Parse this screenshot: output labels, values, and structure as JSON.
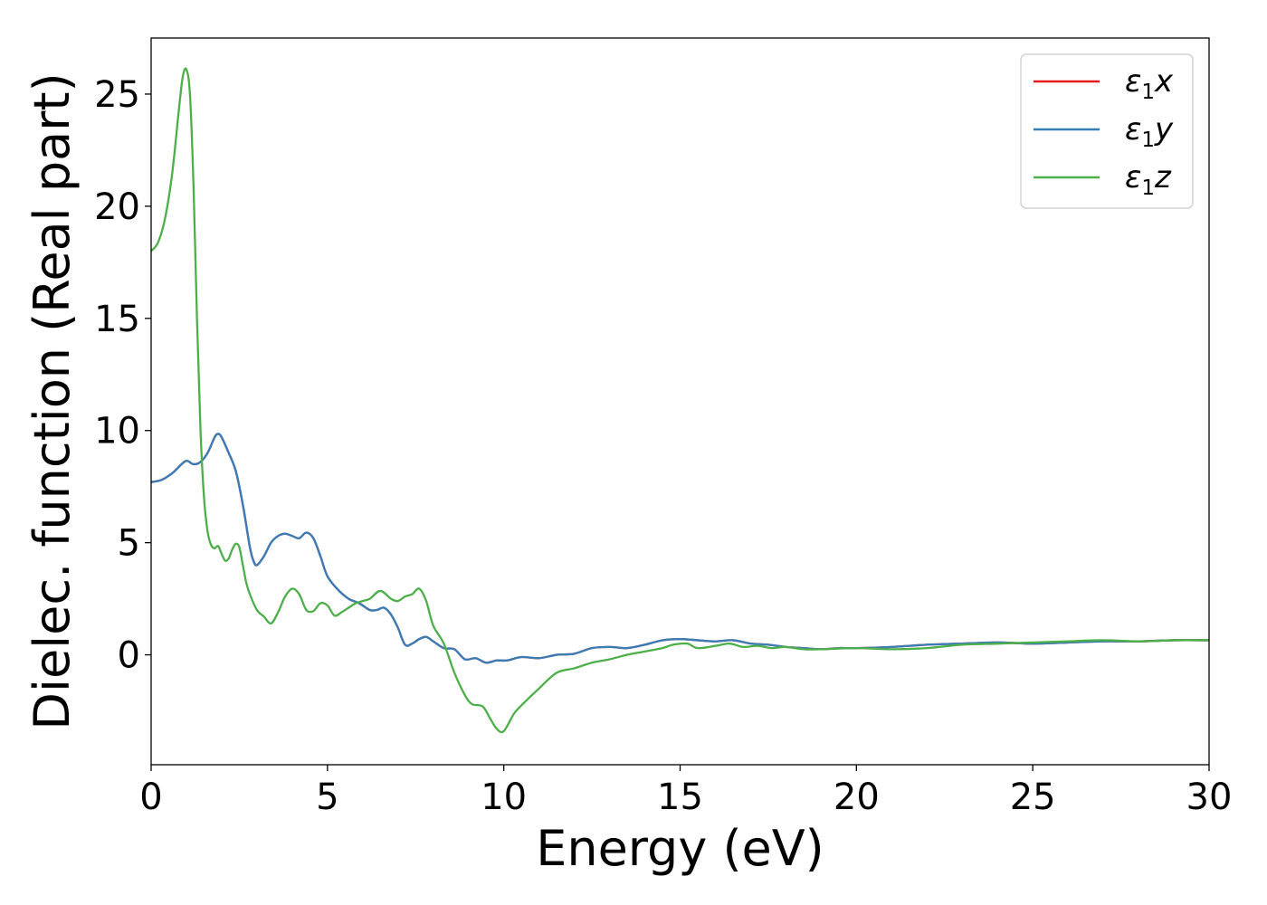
{
  "chart_data": {
    "type": "line",
    "title": "",
    "xlabel": "Energy (eV)",
    "ylabel": "Dielec. function (Real part)",
    "xlim": [
      0,
      30
    ],
    "ylim": [
      -4.9,
      27.5
    ],
    "xticks": [
      0,
      5,
      10,
      15,
      20,
      25,
      30
    ],
    "yticks": [
      0,
      5,
      10,
      15,
      20,
      25
    ],
    "grid": false,
    "legend_position": "top-right",
    "series": [
      {
        "name": "ε₁x",
        "legend": {
          "base": "ε",
          "sub": "1",
          "axis": "x"
        },
        "color": "#e41a1c",
        "x": [
          0,
          0.3,
          0.6,
          0.8,
          1.0,
          1.2,
          1.4,
          1.6,
          1.8,
          1.9,
          2.0,
          2.2,
          2.4,
          2.6,
          2.8,
          2.9,
          3.0,
          3.2,
          3.4,
          3.6,
          3.8,
          4.0,
          4.2,
          4.4,
          4.6,
          4.8,
          5.0,
          5.3,
          5.6,
          5.9,
          6.2,
          6.4,
          6.6,
          6.8,
          7.0,
          7.2,
          7.4,
          7.6,
          7.8,
          8.0,
          8.3,
          8.6,
          8.9,
          9.2,
          9.5,
          9.8,
          10.1,
          10.5,
          11.0,
          11.5,
          12.0,
          12.5,
          13.0,
          13.5,
          14.0,
          14.5,
          15.0,
          15.5,
          16.0,
          16.5,
          17.0,
          17.5,
          18.0,
          18.5,
          19.0,
          19.5,
          20.0,
          21.0,
          22.0,
          23.0,
          24.0,
          25.0,
          26.0,
          27.0,
          28.0,
          29.0,
          30.0
        ],
        "y": [
          7.7,
          7.8,
          8.1,
          8.4,
          8.65,
          8.5,
          8.6,
          9.0,
          9.7,
          9.85,
          9.7,
          9.0,
          8.2,
          6.7,
          4.8,
          4.2,
          4.0,
          4.4,
          5.0,
          5.3,
          5.4,
          5.3,
          5.2,
          5.45,
          5.2,
          4.4,
          3.5,
          2.9,
          2.5,
          2.3,
          2.0,
          2.0,
          2.1,
          1.8,
          1.2,
          0.45,
          0.5,
          0.7,
          0.8,
          0.6,
          0.3,
          0.25,
          -0.2,
          -0.15,
          -0.35,
          -0.25,
          -0.25,
          -0.1,
          -0.15,
          0.0,
          0.05,
          0.3,
          0.35,
          0.3,
          0.45,
          0.65,
          0.7,
          0.65,
          0.6,
          0.65,
          0.5,
          0.45,
          0.35,
          0.3,
          0.25,
          0.3,
          0.3,
          0.35,
          0.45,
          0.5,
          0.55,
          0.5,
          0.55,
          0.6,
          0.6,
          0.65,
          0.65
        ]
      },
      {
        "name": "ε₁y",
        "legend": {
          "base": "ε",
          "sub": "1",
          "axis": "y"
        },
        "color": "#377eb8",
        "x": [
          0,
          0.3,
          0.6,
          0.8,
          1.0,
          1.2,
          1.4,
          1.6,
          1.8,
          1.9,
          2.0,
          2.2,
          2.4,
          2.6,
          2.8,
          2.9,
          3.0,
          3.2,
          3.4,
          3.6,
          3.8,
          4.0,
          4.2,
          4.4,
          4.6,
          4.8,
          5.0,
          5.3,
          5.6,
          5.9,
          6.2,
          6.4,
          6.6,
          6.8,
          7.0,
          7.2,
          7.4,
          7.6,
          7.8,
          8.0,
          8.3,
          8.6,
          8.9,
          9.2,
          9.5,
          9.8,
          10.1,
          10.5,
          11.0,
          11.5,
          12.0,
          12.5,
          13.0,
          13.5,
          14.0,
          14.5,
          15.0,
          15.5,
          16.0,
          16.5,
          17.0,
          17.5,
          18.0,
          18.5,
          19.0,
          19.5,
          20.0,
          21.0,
          22.0,
          23.0,
          24.0,
          25.0,
          26.0,
          27.0,
          28.0,
          29.0,
          30.0
        ],
        "y": [
          7.7,
          7.8,
          8.1,
          8.4,
          8.65,
          8.5,
          8.6,
          9.0,
          9.7,
          9.85,
          9.7,
          9.0,
          8.2,
          6.7,
          4.8,
          4.2,
          4.0,
          4.4,
          5.0,
          5.3,
          5.4,
          5.3,
          5.2,
          5.45,
          5.2,
          4.4,
          3.5,
          2.9,
          2.5,
          2.3,
          2.0,
          2.0,
          2.1,
          1.8,
          1.2,
          0.45,
          0.5,
          0.7,
          0.8,
          0.6,
          0.3,
          0.25,
          -0.2,
          -0.15,
          -0.35,
          -0.25,
          -0.25,
          -0.1,
          -0.15,
          0.0,
          0.05,
          0.3,
          0.35,
          0.3,
          0.45,
          0.65,
          0.7,
          0.65,
          0.6,
          0.65,
          0.5,
          0.45,
          0.35,
          0.3,
          0.25,
          0.3,
          0.3,
          0.35,
          0.45,
          0.5,
          0.55,
          0.5,
          0.55,
          0.6,
          0.6,
          0.65,
          0.65
        ]
      },
      {
        "name": "ε₁z",
        "legend": {
          "base": "ε",
          "sub": "1",
          "axis": "z"
        },
        "color": "#4daf4a",
        "x": [
          0,
          0.2,
          0.4,
          0.6,
          0.8,
          0.9,
          1.0,
          1.1,
          1.2,
          1.3,
          1.4,
          1.5,
          1.6,
          1.7,
          1.8,
          1.9,
          2.0,
          2.1,
          2.2,
          2.3,
          2.4,
          2.5,
          2.6,
          2.7,
          2.8,
          3.0,
          3.2,
          3.4,
          3.6,
          3.8,
          4.0,
          4.2,
          4.4,
          4.6,
          4.8,
          5.0,
          5.2,
          5.4,
          5.6,
          5.8,
          6.0,
          6.2,
          6.5,
          6.8,
          7.0,
          7.2,
          7.4,
          7.6,
          7.8,
          8.0,
          8.3,
          8.6,
          8.9,
          9.1,
          9.4,
          9.6,
          9.8,
          10.0,
          10.3,
          10.6,
          11.0,
          11.5,
          12.0,
          12.5,
          13.0,
          13.5,
          14.0,
          14.5,
          14.8,
          15.2,
          15.5,
          16.0,
          16.4,
          16.8,
          17.2,
          17.6,
          18.0,
          18.5,
          19.0,
          20.0,
          21.0,
          22.0,
          23.0,
          24.0,
          25.0,
          26.0,
          27.0,
          28.0,
          29.0,
          30.0
        ],
        "y": [
          18.0,
          18.4,
          19.5,
          21.5,
          24.5,
          25.8,
          26.1,
          25.0,
          21.0,
          15.0,
          10.0,
          7.0,
          5.5,
          4.9,
          4.75,
          4.85,
          4.5,
          4.2,
          4.3,
          4.7,
          4.95,
          4.8,
          4.0,
          3.2,
          2.7,
          2.0,
          1.7,
          1.4,
          1.9,
          2.6,
          2.95,
          2.7,
          2.0,
          1.95,
          2.3,
          2.2,
          1.75,
          1.9,
          2.1,
          2.3,
          2.4,
          2.5,
          2.85,
          2.5,
          2.4,
          2.6,
          2.7,
          2.95,
          2.4,
          1.3,
          0.5,
          -0.8,
          -1.8,
          -2.2,
          -2.3,
          -2.8,
          -3.3,
          -3.4,
          -2.6,
          -2.1,
          -1.5,
          -0.8,
          -0.6,
          -0.35,
          -0.2,
          0.0,
          0.15,
          0.3,
          0.45,
          0.5,
          0.3,
          0.4,
          0.5,
          0.35,
          0.4,
          0.3,
          0.35,
          0.25,
          0.25,
          0.3,
          0.25,
          0.3,
          0.45,
          0.5,
          0.55,
          0.6,
          0.65,
          0.6,
          0.65,
          0.65
        ]
      }
    ]
  }
}
